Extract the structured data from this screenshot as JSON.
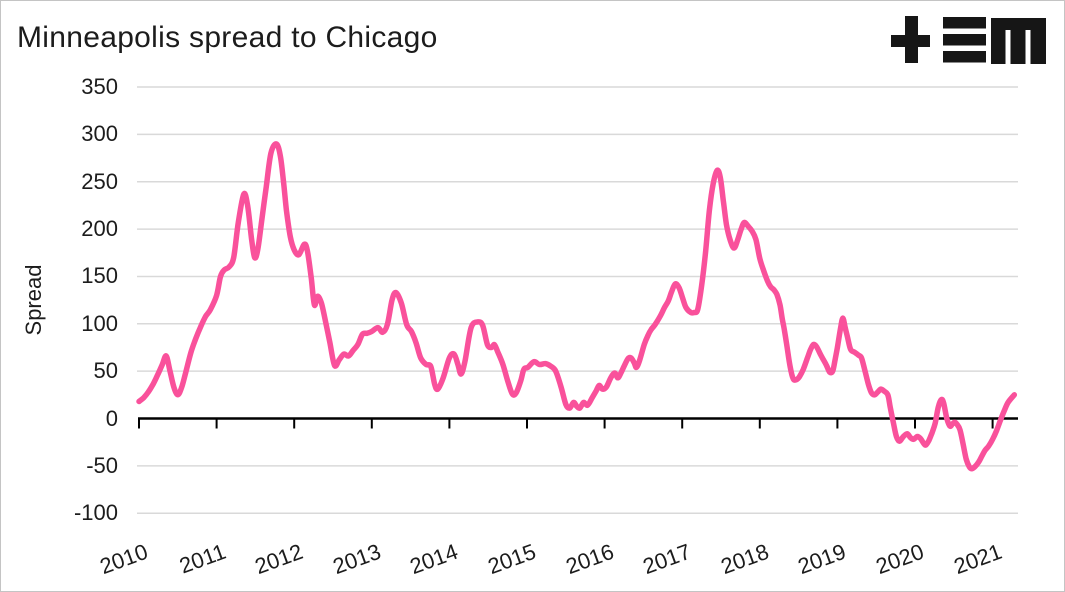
{
  "header": {
    "title": "Minneapolis spread to Chicago",
    "logo": {
      "name": "tem-logo",
      "glyphs": [
        "plus-icon",
        "triple-bar-icon",
        "blocky-m-icon"
      ],
      "color": "#161616"
    }
  },
  "colors": {
    "line": "#F9519B",
    "grid": "#D9D9D9",
    "axis": "#000000",
    "text": "#1C1C1C",
    "border": "#C4C4C4",
    "background": "#FFFFFF"
  },
  "chart_data": {
    "type": "line",
    "title": "Minneapolis spread to Chicago",
    "xlabel": "",
    "ylabel": "Spread",
    "ylim": [
      -100,
      350
    ],
    "xlim": [
      2009.95,
      2021.35
    ],
    "y_ticks": [
      350,
      300,
      250,
      200,
      150,
      100,
      50,
      0,
      -50,
      -100
    ],
    "x_ticks": [
      2010,
      2011,
      2012,
      2013,
      2014,
      2015,
      2016,
      2017,
      2018,
      2019,
      2020,
      2021
    ],
    "grid": "horizontal-only",
    "legend": "none",
    "series": [
      {
        "name": "Minneapolis spread to Chicago",
        "color": "#F9519B",
        "points": [
          [
            2010.0,
            18
          ],
          [
            2010.06,
            22
          ],
          [
            2010.12,
            28
          ],
          [
            2010.18,
            36
          ],
          [
            2010.24,
            46
          ],
          [
            2010.3,
            57
          ],
          [
            2010.35,
            66
          ],
          [
            2010.4,
            50
          ],
          [
            2010.45,
            33
          ],
          [
            2010.5,
            25
          ],
          [
            2010.55,
            33
          ],
          [
            2010.6,
            48
          ],
          [
            2010.67,
            70
          ],
          [
            2010.73,
            84
          ],
          [
            2010.8,
            98
          ],
          [
            2010.86,
            108
          ],
          [
            2010.92,
            115
          ],
          [
            2011.0,
            130
          ],
          [
            2011.05,
            150
          ],
          [
            2011.1,
            157
          ],
          [
            2011.16,
            160
          ],
          [
            2011.22,
            170
          ],
          [
            2011.28,
            207
          ],
          [
            2011.35,
            237
          ],
          [
            2011.4,
            225
          ],
          [
            2011.45,
            190
          ],
          [
            2011.49,
            170
          ],
          [
            2011.53,
            178
          ],
          [
            2011.58,
            208
          ],
          [
            2011.64,
            245
          ],
          [
            2011.7,
            280
          ],
          [
            2011.77,
            290
          ],
          [
            2011.82,
            278
          ],
          [
            2011.86,
            252
          ],
          [
            2011.9,
            220
          ],
          [
            2011.95,
            192
          ],
          [
            2012.0,
            178
          ],
          [
            2012.06,
            173
          ],
          [
            2012.13,
            184
          ],
          [
            2012.17,
            177
          ],
          [
            2012.22,
            148
          ],
          [
            2012.26,
            120
          ],
          [
            2012.3,
            129
          ],
          [
            2012.35,
            122
          ],
          [
            2012.41,
            100
          ],
          [
            2012.46,
            80
          ],
          [
            2012.52,
            56
          ],
          [
            2012.58,
            62
          ],
          [
            2012.64,
            68
          ],
          [
            2012.7,
            66
          ],
          [
            2012.76,
            72
          ],
          [
            2012.82,
            78
          ],
          [
            2012.88,
            89
          ],
          [
            2012.94,
            90
          ],
          [
            2013.0,
            92
          ],
          [
            2013.08,
            96
          ],
          [
            2013.14,
            91
          ],
          [
            2013.2,
            99
          ],
          [
            2013.26,
            125
          ],
          [
            2013.31,
            133
          ],
          [
            2013.38,
            122
          ],
          [
            2013.45,
            99
          ],
          [
            2013.51,
            92
          ],
          [
            2013.57,
            80
          ],
          [
            2013.63,
            64
          ],
          [
            2013.7,
            57
          ],
          [
            2013.76,
            55
          ],
          [
            2013.81,
            36
          ],
          [
            2013.85,
            31
          ],
          [
            2013.92,
            43
          ],
          [
            2014.0,
            64
          ],
          [
            2014.06,
            68
          ],
          [
            2014.11,
            57
          ],
          [
            2014.15,
            47
          ],
          [
            2014.2,
            60
          ],
          [
            2014.28,
            96
          ],
          [
            2014.37,
            102
          ],
          [
            2014.43,
            98
          ],
          [
            2014.49,
            78
          ],
          [
            2014.54,
            75
          ],
          [
            2014.58,
            78
          ],
          [
            2014.62,
            71
          ],
          [
            2014.69,
            57
          ],
          [
            2014.75,
            40
          ],
          [
            2014.81,
            26
          ],
          [
            2014.86,
            27
          ],
          [
            2014.92,
            40
          ],
          [
            2014.96,
            52
          ],
          [
            2015.01,
            54
          ],
          [
            2015.09,
            60
          ],
          [
            2015.16,
            57
          ],
          [
            2015.24,
            58
          ],
          [
            2015.31,
            55
          ],
          [
            2015.37,
            50
          ],
          [
            2015.44,
            33
          ],
          [
            2015.5,
            15
          ],
          [
            2015.55,
            11
          ],
          [
            2015.6,
            17
          ],
          [
            2015.64,
            13
          ],
          [
            2015.68,
            11
          ],
          [
            2015.73,
            17
          ],
          [
            2015.78,
            14
          ],
          [
            2015.84,
            22
          ],
          [
            2015.89,
            29
          ],
          [
            2015.93,
            35
          ],
          [
            2015.97,
            31
          ],
          [
            2016.02,
            33
          ],
          [
            2016.08,
            43
          ],
          [
            2016.13,
            48
          ],
          [
            2016.17,
            43
          ],
          [
            2016.21,
            48
          ],
          [
            2016.25,
            55
          ],
          [
            2016.3,
            63
          ],
          [
            2016.34,
            64
          ],
          [
            2016.38,
            59
          ],
          [
            2016.41,
            54
          ],
          [
            2016.45,
            61
          ],
          [
            2016.51,
            78
          ],
          [
            2016.56,
            88
          ],
          [
            2016.6,
            94
          ],
          [
            2016.64,
            98
          ],
          [
            2016.68,
            103
          ],
          [
            2016.73,
            110
          ],
          [
            2016.77,
            117
          ],
          [
            2016.82,
            124
          ],
          [
            2016.86,
            133
          ],
          [
            2016.91,
            142
          ],
          [
            2016.96,
            138
          ],
          [
            2017.01,
            126
          ],
          [
            2017.05,
            117
          ],
          [
            2017.11,
            112
          ],
          [
            2017.16,
            112
          ],
          [
            2017.2,
            115
          ],
          [
            2017.25,
            140
          ],
          [
            2017.3,
            175
          ],
          [
            2017.35,
            220
          ],
          [
            2017.4,
            248
          ],
          [
            2017.45,
            262
          ],
          [
            2017.49,
            255
          ],
          [
            2017.53,
            230
          ],
          [
            2017.57,
            205
          ],
          [
            2017.62,
            188
          ],
          [
            2017.67,
            180
          ],
          [
            2017.72,
            190
          ],
          [
            2017.76,
            200
          ],
          [
            2017.8,
            207
          ],
          [
            2017.85,
            203
          ],
          [
            2017.9,
            198
          ],
          [
            2017.95,
            189
          ],
          [
            2018.0,
            169
          ],
          [
            2018.05,
            156
          ],
          [
            2018.1,
            145
          ],
          [
            2018.14,
            139
          ],
          [
            2018.18,
            136
          ],
          [
            2018.22,
            131
          ],
          [
            2018.26,
            120
          ],
          [
            2018.29,
            105
          ],
          [
            2018.32,
            92
          ],
          [
            2018.35,
            76
          ],
          [
            2018.39,
            55
          ],
          [
            2018.43,
            42
          ],
          [
            2018.47,
            41
          ],
          [
            2018.51,
            44
          ],
          [
            2018.56,
            52
          ],
          [
            2018.61,
            63
          ],
          [
            2018.65,
            72
          ],
          [
            2018.69,
            78
          ],
          [
            2018.73,
            76
          ],
          [
            2018.78,
            68
          ],
          [
            2018.82,
            62
          ],
          [
            2018.86,
            56
          ],
          [
            2018.9,
            49
          ],
          [
            2018.94,
            50
          ],
          [
            2018.97,
            62
          ],
          [
            2019.0,
            75
          ],
          [
            2019.04,
            95
          ],
          [
            2019.07,
            106
          ],
          [
            2019.1,
            96
          ],
          [
            2019.13,
            86
          ],
          [
            2019.17,
            73
          ],
          [
            2019.22,
            70
          ],
          [
            2019.27,
            67
          ],
          [
            2019.31,
            64
          ],
          [
            2019.35,
            52
          ],
          [
            2019.4,
            36
          ],
          [
            2019.44,
            27
          ],
          [
            2019.48,
            25
          ],
          [
            2019.52,
            28
          ],
          [
            2019.56,
            31
          ],
          [
            2019.6,
            29
          ],
          [
            2019.65,
            25
          ],
          [
            2019.68,
            12
          ],
          [
            2019.72,
            -4
          ],
          [
            2019.76,
            -19
          ],
          [
            2019.8,
            -24
          ],
          [
            2019.85,
            -19
          ],
          [
            2019.9,
            -16
          ],
          [
            2019.94,
            -20
          ],
          [
            2019.98,
            -22
          ],
          [
            2020.03,
            -19
          ],
          [
            2020.07,
            -21
          ],
          [
            2020.11,
            -26
          ],
          [
            2020.14,
            -28
          ],
          [
            2020.18,
            -23
          ],
          [
            2020.22,
            -15
          ],
          [
            2020.26,
            -5
          ],
          [
            2020.3,
            12
          ],
          [
            2020.34,
            20
          ],
          [
            2020.37,
            16
          ],
          [
            2020.41,
            0
          ],
          [
            2020.45,
            -8
          ],
          [
            2020.48,
            -6
          ],
          [
            2020.51,
            -4
          ],
          [
            2020.54,
            -6
          ],
          [
            2020.58,
            -12
          ],
          [
            2020.62,
            -27
          ],
          [
            2020.66,
            -43
          ],
          [
            2020.7,
            -51
          ],
          [
            2020.73,
            -53
          ],
          [
            2020.77,
            -51
          ],
          [
            2020.82,
            -46
          ],
          [
            2020.86,
            -40
          ],
          [
            2020.9,
            -34
          ],
          [
            2020.95,
            -29
          ],
          [
            2021.0,
            -22
          ],
          [
            2021.05,
            -13
          ],
          [
            2021.1,
            -2
          ],
          [
            2021.15,
            8
          ],
          [
            2021.2,
            17
          ],
          [
            2021.28,
            25
          ]
        ]
      }
    ]
  }
}
